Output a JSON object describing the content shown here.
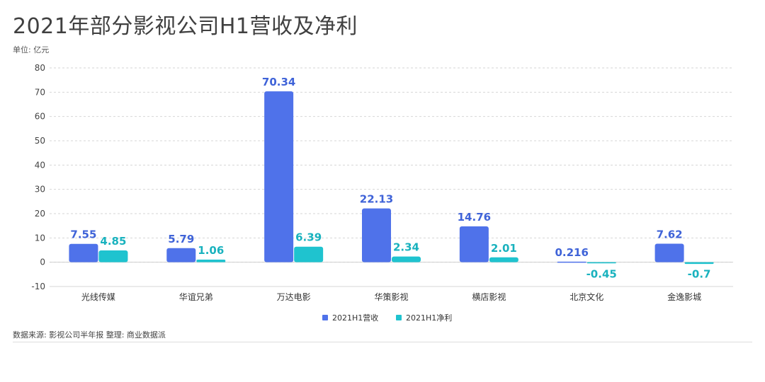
{
  "title": "2021年部分影视公司H1营收及净利",
  "unit": "单位: 亿元",
  "source": "数据来源: 影视公司半年报  整理: 商业数据派",
  "colors": {
    "revenue": "#4f72ea",
    "profit": "#1fc3cf"
  },
  "chart_data": {
    "type": "bar",
    "title": "2021年部分影视公司H1营收及净利",
    "ylabel": "单位: 亿元",
    "xlabel": "",
    "ylim": [
      -10,
      80
    ],
    "yticks": [
      -10,
      0,
      10,
      20,
      30,
      40,
      50,
      60,
      70,
      80
    ],
    "grid": true,
    "legend_position": "bottom",
    "categories": [
      "光线传媒",
      "华谊兄弟",
      "万达电影",
      "华策影视",
      "横店影视",
      "北京文化",
      "金逸影城"
    ],
    "series": [
      {
        "name": "2021H1营收",
        "values": [
          7.55,
          5.79,
          70.34,
          22.13,
          14.76,
          0.216,
          7.62
        ],
        "labels": [
          "7.55",
          "5.79",
          "70.34",
          "22.13",
          "14.76",
          "0.216",
          "7.62"
        ]
      },
      {
        "name": "2021H1净利",
        "values": [
          4.85,
          1.06,
          6.39,
          2.34,
          2.01,
          -0.45,
          -0.7
        ],
        "labels": [
          "4.85",
          "1.06",
          "6.39",
          "2.34",
          "2.01",
          "-0.45",
          "-0.7"
        ]
      }
    ]
  }
}
